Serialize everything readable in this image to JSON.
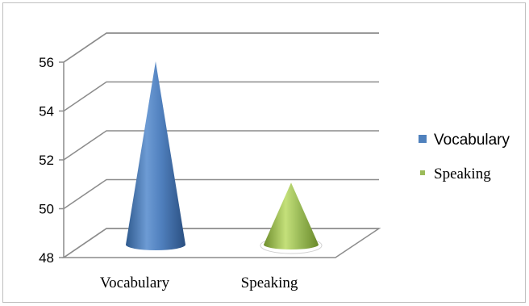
{
  "chart_data": {
    "type": "bar",
    "shape": "cone",
    "three_d": true,
    "categories": [
      "Vocabulary",
      "Speaking"
    ],
    "series": [
      {
        "name": "Vocabulary",
        "color": "#4f81bd",
        "values": [
          56,
          null
        ]
      },
      {
        "name": "Speaking",
        "color": "#9bbb59",
        "values": [
          null,
          51
        ]
      }
    ],
    "yticks": [
      "48",
      "50",
      "52",
      "54",
      "56"
    ],
    "ylim": [
      48,
      56
    ],
    "grid": true,
    "legend_position": "right"
  }
}
